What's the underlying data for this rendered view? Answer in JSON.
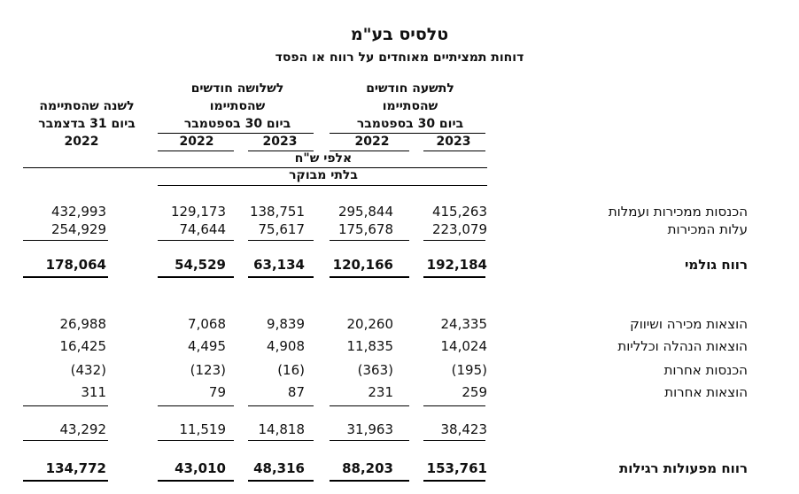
{
  "title": "טלסיס בע\"מ",
  "subtitle": "דוחות תמציתיים מאוחדים על רווח או הפסד",
  "col_groups": {
    "nine": [
      "לתשעה חודשים",
      "שהסתיימו",
      "ביום 30 בספטמבר"
    ],
    "three": [
      "לשלושה חודשים",
      "שהסתיימו",
      "ביום 30 בספטמבר"
    ],
    "year": [
      "לשנה שהסתיימה",
      "ביום 31 בדצמבר"
    ]
  },
  "years": {
    "nine_2023": "2023",
    "nine_2022": "2022",
    "three_2023": "2023",
    "three_2022": "2022",
    "year_2022": "2022"
  },
  "unit": "אלפי ש\"ח",
  "audit": "בלתי מבוקר",
  "rows": [
    {
      "label": "הכנסות ממכירות ועמלות",
      "v": [
        "415,263",
        "295,844",
        "138,751",
        "129,173",
        "432,993"
      ]
    },
    {
      "label": "עלות המכירות",
      "v": [
        "223,079",
        "175,678",
        "75,617",
        "74,644",
        "254,929"
      ]
    },
    {
      "label": "רווח גולמי",
      "v": [
        "192,184",
        "120,166",
        "63,134",
        "54,529",
        "178,064"
      ]
    },
    {
      "label": "הוצאות מכירה ושיווק",
      "v": [
        "24,335",
        "20,260",
        "9,839",
        "7,068",
        "26,988"
      ]
    },
    {
      "label": "הוצאות הנהלה וכלליות",
      "v": [
        "14,024",
        "11,835",
        "4,908",
        "4,495",
        "16,425"
      ]
    },
    {
      "label": "הכנסות אחרות",
      "v": [
        "(195)",
        "(363)",
        "(16)",
        "(123)",
        "(432)"
      ]
    },
    {
      "label": "הוצאות אחרות",
      "v": [
        "259",
        "231",
        "87",
        "79",
        "311"
      ]
    },
    {
      "label": "",
      "v": [
        "38,423",
        "31,963",
        "14,818",
        "11,519",
        "43,292"
      ]
    },
    {
      "label": "רווח מפעולות רגילות",
      "v": [
        "153,761",
        "88,203",
        "48,316",
        "43,010",
        "134,772"
      ]
    }
  ]
}
